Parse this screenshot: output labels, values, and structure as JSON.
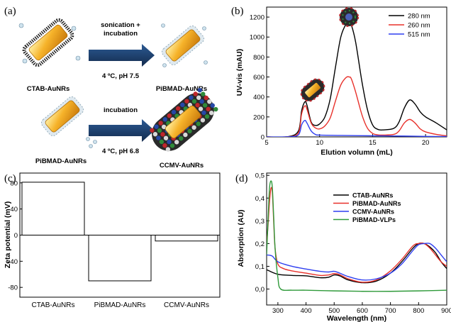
{
  "panel_labels": [
    "(a)",
    "(b)",
    "(c)",
    "(d)"
  ],
  "schematic": {
    "row1": {
      "left": "CTAB-AuNRs",
      "arrow_top": "sonication +",
      "arrow_top2": "incubation",
      "arrow_bottom": "4 ºC, pH 7.5",
      "right": "PiBMAD-AuNRs"
    },
    "row2": {
      "left": "PiBMAD-AuNRs",
      "arrow_top": "incubation",
      "arrow_bottom": "4 ºC, pH 6.8",
      "right": "CCMV-AuNRs"
    },
    "colors": {
      "rod": "#f2a51a",
      "arrow": "#1e3f6b",
      "capsid_red": "#c0262b",
      "capsid_green": "#2f8a3a",
      "capsid_blue": "#2548a8"
    }
  },
  "chart_data": [
    {
      "type": "line",
      "title": "",
      "xlabel": "Elution volumn (mL)",
      "ylabel": "UV-vis (mAU)",
      "xlim": [
        5,
        22
      ],
      "ylim": [
        0,
        1300
      ],
      "xticks": [
        5,
        10,
        15,
        20
      ],
      "yticks": [
        0,
        200,
        400,
        600,
        800,
        1000,
        1200
      ],
      "legend": "top-right",
      "series": [
        {
          "name": "280 nm",
          "color": "#000000",
          "x": [
            5,
            7,
            8,
            8.3,
            8.6,
            8.8,
            9.2,
            9.6,
            10,
            10.5,
            11,
            11.5,
            12,
            12.5,
            12.8,
            13,
            13.4,
            14,
            14.5,
            15,
            15.5,
            16,
            17,
            17.5,
            18,
            18.5,
            19,
            19.5,
            20,
            21,
            22
          ],
          "y": [
            0,
            2,
            60,
            260,
            350,
            320,
            150,
            115,
            130,
            200,
            380,
            700,
            1000,
            1130,
            1145,
            1120,
            950,
            550,
            280,
            120,
            75,
            70,
            85,
            150,
            290,
            370,
            330,
            250,
            200,
            140,
            70
          ]
        },
        {
          "name": "260 nm",
          "color": "#e8302a",
          "x": [
            5,
            7,
            8,
            8.3,
            8.6,
            8.8,
            9.2,
            9.6,
            10,
            10.5,
            11,
            11.5,
            12,
            12.5,
            12.8,
            13,
            13.4,
            14,
            14.5,
            15,
            15.5,
            16,
            17,
            17.5,
            18,
            18.5,
            19,
            19.5,
            20,
            21,
            22
          ],
          "y": [
            0,
            1,
            40,
            230,
            310,
            280,
            140,
            90,
            80,
            110,
            190,
            360,
            520,
            595,
            600,
            580,
            450,
            220,
            90,
            35,
            20,
            18,
            25,
            60,
            140,
            175,
            140,
            80,
            50,
            25,
            10
          ]
        },
        {
          "name": "515 nm",
          "color": "#2f3ff0",
          "x": [
            5,
            7,
            8,
            8.3,
            8.6,
            8.8,
            9.2,
            9.6,
            10,
            12,
            14,
            16,
            18,
            20,
            22
          ],
          "y": [
            0,
            1,
            20,
            120,
            165,
            140,
            60,
            25,
            18,
            15,
            12,
            10,
            8,
            5,
            3
          ]
        }
      ],
      "inset_labels": []
    },
    {
      "type": "bar",
      "title": "",
      "xlabel": "",
      "ylabel": "Zeta potential (mV)",
      "ylim": [
        -95,
        95
      ],
      "yticks": [
        -80,
        -40,
        0,
        40,
        80
      ],
      "categories": [
        "CTAB-AuNRs",
        "PiBMAD-AuNRs",
        "CCMV-AuNRs"
      ],
      "values": [
        81,
        -70,
        -9
      ]
    },
    {
      "type": "line",
      "title": "",
      "xlabel": "Wavelength (nm)",
      "ylabel": "Absorption (AU)",
      "xlim": [
        260,
        900
      ],
      "ylim": [
        -0.07,
        0.51
      ],
      "xticks": [
        300,
        400,
        500,
        600,
        700,
        800,
        900
      ],
      "yticks": [
        0.0,
        0.1,
        0.2,
        0.3,
        0.4,
        0.5
      ],
      "ytick_labels": [
        "0,0",
        "0,1",
        "0,2",
        "0,3",
        "0,4",
        "0,5"
      ],
      "legend": "top-right",
      "series": [
        {
          "name": "CTAB-AuNRs",
          "color": "#000000",
          "x": [
            260,
            300,
            350,
            400,
            450,
            480,
            500,
            520,
            550,
            600,
            650,
            700,
            740,
            780,
            800,
            820,
            840,
            860,
            880,
            900
          ],
          "y": [
            0.085,
            0.065,
            0.06,
            0.058,
            0.05,
            0.052,
            0.062,
            0.058,
            0.04,
            0.028,
            0.035,
            0.07,
            0.12,
            0.18,
            0.2,
            0.2,
            0.185,
            0.16,
            0.12,
            0.09
          ]
        },
        {
          "name": "PiBMAD-AuNRs",
          "color": "#e8302a",
          "x": [
            260,
            265,
            270,
            275,
            280,
            285,
            290,
            300,
            320,
            350,
            400,
            450,
            480,
            500,
            520,
            550,
            600,
            650,
            700,
            740,
            780,
            800,
            820,
            840,
            860,
            880,
            900
          ],
          "y": [
            0.2,
            0.28,
            0.38,
            0.44,
            0.43,
            0.3,
            0.18,
            0.11,
            0.09,
            0.08,
            0.07,
            0.06,
            0.062,
            0.068,
            0.063,
            0.045,
            0.03,
            0.04,
            0.08,
            0.13,
            0.19,
            0.2,
            0.2,
            0.18,
            0.15,
            0.12,
            0.1
          ]
        },
        {
          "name": "CCMV-AuNRs",
          "color": "#2f3ff0",
          "x": [
            260,
            280,
            300,
            350,
            400,
            450,
            480,
            500,
            520,
            550,
            600,
            650,
            700,
            740,
            780,
            800,
            820,
            840,
            860,
            880,
            900
          ],
          "y": [
            0.15,
            0.145,
            0.12,
            0.1,
            0.088,
            0.078,
            0.075,
            0.078,
            0.07,
            0.055,
            0.04,
            0.045,
            0.07,
            0.11,
            0.17,
            0.195,
            0.2,
            0.2,
            0.18,
            0.15,
            0.12
          ]
        },
        {
          "name": "PiBMAD-VLPs",
          "color": "#2f9a3a",
          "x": [
            260,
            265,
            270,
            275,
            280,
            285,
            290,
            300,
            310,
            350,
            400,
            500,
            600,
            700,
            800,
            900
          ],
          "y": [
            0.15,
            0.3,
            0.44,
            0.475,
            0.45,
            0.32,
            0.18,
            0.05,
            0.0,
            -0.005,
            -0.005,
            -0.008,
            -0.01,
            -0.01,
            -0.008,
            -0.005
          ]
        }
      ]
    }
  ]
}
